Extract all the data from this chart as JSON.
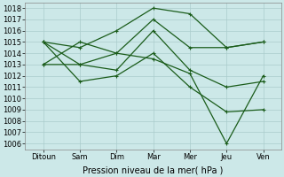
{
  "background_color": "#cce8e8",
  "grid_color": "#aacccc",
  "line_color": "#1a5c1a",
  "x_labels": [
    "Ditoun",
    "Sam",
    "Dim",
    "Mar",
    "Mer",
    "Jeu",
    "Ven"
  ],
  "x_positions": [
    0,
    1,
    2,
    3,
    4,
    5,
    6
  ],
  "lines": [
    {
      "x": [
        0,
        1,
        2,
        3,
        4,
        5,
        6
      ],
      "y": [
        1013.0,
        1015.0,
        1014.0,
        1017.0,
        1014.5,
        1014.5,
        1015.0
      ]
    },
    {
      "x": [
        0,
        1,
        2,
        3,
        4,
        5,
        6
      ],
      "y": [
        1015.0,
        1014.5,
        1016.0,
        1018.0,
        1017.5,
        1014.5,
        1015.0
      ]
    },
    {
      "x": [
        0,
        1,
        2,
        3,
        4,
        5,
        6
      ],
      "y": [
        1015.0,
        1013.0,
        1012.5,
        1016.0,
        1012.5,
        1011.0,
        1011.5
      ]
    },
    {
      "x": [
        0,
        1,
        2,
        3,
        4,
        5,
        6
      ],
      "y": [
        1015.0,
        1011.5,
        1012.0,
        1014.0,
        1011.0,
        1008.8,
        1009.0
      ]
    },
    {
      "x": [
        0,
        1,
        2,
        3,
        4,
        5,
        6
      ],
      "y": [
        1013.0,
        1013.0,
        1014.0,
        1013.5,
        1012.2,
        1006.0,
        1012.0
      ]
    }
  ],
  "ylim": [
    1005.5,
    1018.5
  ],
  "yticks": [
    1006,
    1007,
    1008,
    1009,
    1010,
    1011,
    1012,
    1013,
    1014,
    1015,
    1016,
    1017,
    1018
  ],
  "xlabel": "Pression niveau de la mer( hPa )",
  "xlabel_fontsize": 7,
  "tick_fontsize": 6,
  "marker": "+",
  "marker_size": 3.5,
  "linewidth": 0.9
}
